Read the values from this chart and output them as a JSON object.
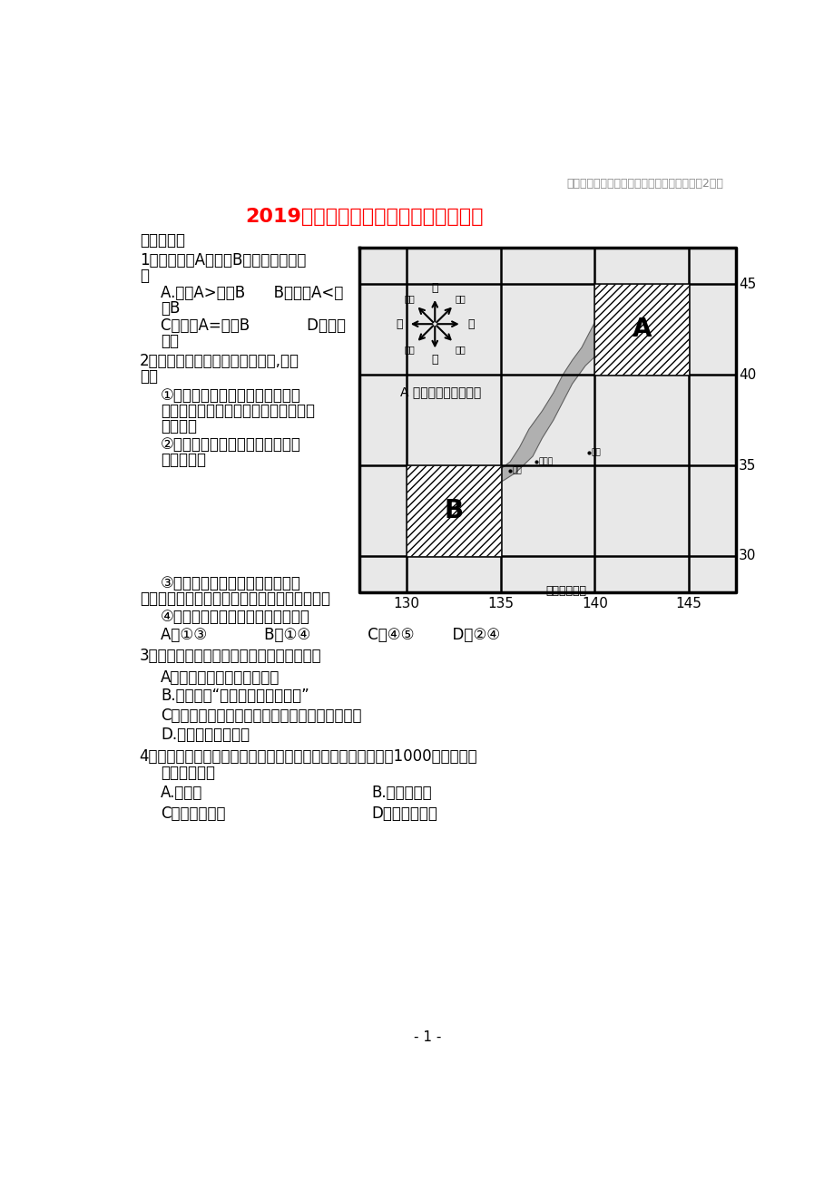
{
  "bg_color": "#ffffff",
  "header_text": "江西省上饶县高一地理下学期半月考试题（第2周）",
  "main_title": "2019届高一年级第二周地理半月考试卷",
  "section1": "一、选择题",
  "q1_line1": "1、图中阴影A与阴影B的面积比正确的",
  "q1_line2": "是",
  "q1_optAB": "A.阴影A>阴影B      B。阴影A<阴",
  "q1_optAB2": "影B",
  "q1_optCD": "C．阴影A=阴影B            D。无法",
  "q1_optCD2": "比较",
  "q2_line1": "2、下列在地图上辨别方向的方法,正确",
  "q2_line2": "的是",
  "q2_i1a": "①有经纬线的地图，应根据经线指",
  "q2_i1b": "示东西方向，纬线指示南北方向的原理",
  "q2_i1c": "辨别方向",
  "q2_i2a": "②有指向标的地图，一般根据指向",
  "q2_i2b": "标辨别方向",
  "q2_i3a": "③既无经纬线，又无指向标的地图",
  "q2_i3b": "上，应根据上北下南、左西右东的原理辨别方向",
  "q2_i4": "④特殊地图，可根据比例尺辨别方向",
  "q2_opts": "A．①③            B．①④            C．④⑤        D．②④",
  "q3_line1": "3、在有经纬网的地图上辨别方向，正确的是",
  "q3_optA": "A。先找指向标，然后定方向",
  "q3_optB": "B.面向地图“上北下南，左西右东”",
  "q3_optC": "C。不在同一条纬线上的两点，肯定会有东西之分",
  "q3_optD": "D.经线指示南北方向",
  "q4_line1": "4、某人从赤道出发，分别向正东、正南、正西、正北方向各走1000千米，最后",
  "q4_line2": "这个人将位于",
  "q4_optA": "A.出发点",
  "q4_optB": "B.出发点以东",
  "q4_optC": "C。出发点以西",
  "q4_optD": "D。出发点以南",
  "page_num": "- 1 -",
  "map_caption_A": "A 地平面上的八个方向",
  "map_caption_B": "经纬线的地图",
  "map_label_A": "A",
  "map_label_B": "B",
  "map_lon_labels": [
    "130",
    "135",
    "140",
    "145"
  ],
  "map_lat_labels": [
    "45",
    "40",
    "35",
    "30"
  ],
  "compass_N": "北",
  "compass_E": "东",
  "compass_S": "南",
  "compass_W": "西",
  "compass_NE": "东北",
  "compass_SE": "东南",
  "compass_SW": "西南",
  "compass_NW": "西北",
  "city_tokyo": "东京",
  "city_nagoya": "名古屋",
  "city_osaka": "大阪"
}
